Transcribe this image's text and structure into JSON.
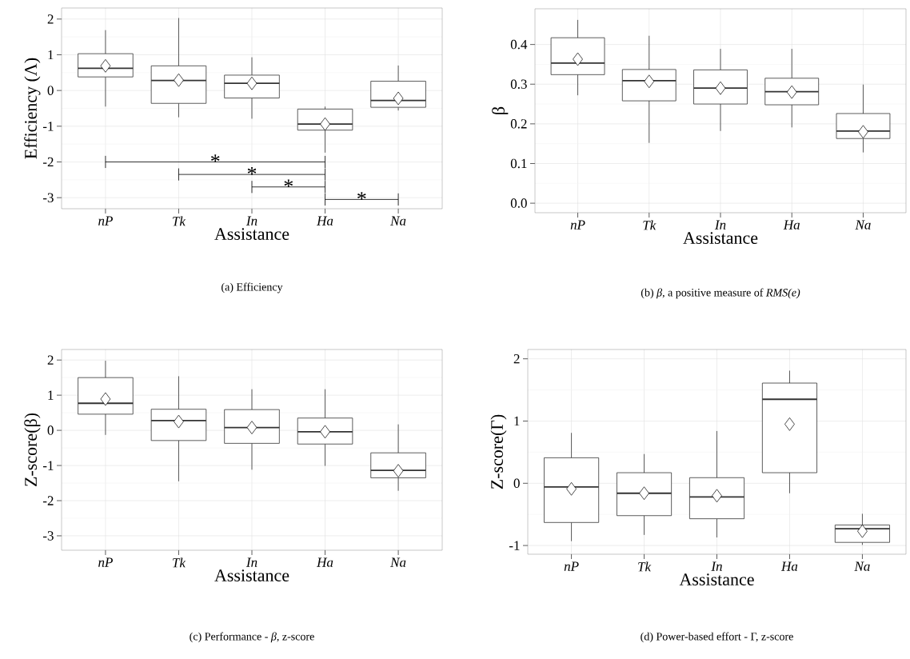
{
  "chart_data": [
    {
      "type": "box",
      "title": "(a) Efficiency",
      "xlabel": "Assistance",
      "ylabel": "Efficiency (Λ)",
      "categories": [
        "nP",
        "Tk",
        "In",
        "Ha",
        "Na"
      ],
      "boxes": [
        {
          "low": -0.45,
          "q1": 0.38,
          "median": 0.62,
          "q3": 1.03,
          "high": 1.69,
          "mean": 0.69
        },
        {
          "low": -0.75,
          "q1": -0.36,
          "median": 0.28,
          "q3": 0.69,
          "high": 2.03,
          "mean": 0.29
        },
        {
          "low": -0.79,
          "q1": -0.21,
          "median": 0.2,
          "q3": 0.43,
          "high": 0.93,
          "mean": 0.2
        },
        {
          "low": -1.74,
          "q1": -1.11,
          "median": -0.94,
          "q3": -0.52,
          "high": -0.45,
          "mean": -0.94
        },
        {
          "low": -0.56,
          "q1": -0.47,
          "median": -0.28,
          "q3": 0.26,
          "high": 0.7,
          "mean": -0.22
        }
      ],
      "ylim": [
        -3.31,
        2.31
      ],
      "yticks": [
        -3,
        -2,
        -1,
        0,
        1,
        2
      ],
      "grid": true,
      "marker": "diamond",
      "annotations": [
        "*",
        "*",
        "*",
        "*"
      ]
    },
    {
      "type": "box",
      "title": "(b) *β*, a positive measure of *RMS(e)*",
      "xlabel": "Assistance",
      "ylabel": "β",
      "categories": [
        "nP",
        "Tk",
        "In",
        "Ha",
        "Na"
      ],
      "boxes": [
        {
          "low": 0.272,
          "q1": 0.324,
          "median": 0.353,
          "q3": 0.417,
          "high": 0.462,
          "mean": 0.363
        },
        {
          "low": 0.152,
          "q1": 0.258,
          "median": 0.309,
          "q3": 0.337,
          "high": 0.422,
          "mean": 0.307
        },
        {
          "low": 0.182,
          "q1": 0.25,
          "median": 0.29,
          "q3": 0.336,
          "high": 0.389,
          "mean": 0.29
        },
        {
          "low": 0.191,
          "q1": 0.248,
          "median": 0.281,
          "q3": 0.315,
          "high": 0.389,
          "mean": 0.28
        },
        {
          "low": 0.128,
          "q1": 0.163,
          "median": 0.182,
          "q3": 0.226,
          "high": 0.299,
          "mean": 0.18
        }
      ],
      "ylim": [
        -0.024,
        0.49
      ],
      "yticks": [
        {
          "value": 0,
          "label": "0.0"
        },
        {
          "value": 0.1,
          "label": "0.1"
        },
        {
          "value": 0.2,
          "label": "0.2"
        },
        {
          "value": 0.3,
          "label": "0.3"
        },
        {
          "value": 0.4,
          "label": "0.4"
        }
      ],
      "grid": true,
      "marker": "diamond"
    },
    {
      "type": "box",
      "title": "(c) Performance - *β*, z-score",
      "xlabel": "Assistance",
      "ylabel": "Z-score(β)",
      "categories": [
        "nP",
        "Tk",
        "In",
        "Ha",
        "Na"
      ],
      "boxes": [
        {
          "low": -0.13,
          "q1": 0.46,
          "median": 0.77,
          "q3": 1.5,
          "high": 1.98,
          "mean": 0.89
        },
        {
          "low": -1.45,
          "q1": -0.29,
          "median": 0.28,
          "q3": 0.6,
          "high": 1.54,
          "mean": 0.25
        },
        {
          "low": -1.12,
          "q1": -0.37,
          "median": 0.08,
          "q3": 0.59,
          "high": 1.17,
          "mean": 0.08
        },
        {
          "low": -1.01,
          "q1": -0.39,
          "median": -0.04,
          "q3": 0.35,
          "high": 1.17,
          "mean": -0.04
        },
        {
          "low": -1.72,
          "q1": -1.35,
          "median": -1.14,
          "q3": -0.64,
          "high": 0.17,
          "mean": -1.15
        }
      ],
      "ylim": [
        -3.41,
        2.3
      ],
      "yticks": [
        -3,
        -2,
        -1,
        0,
        1,
        2
      ],
      "grid": true,
      "marker": "diamond"
    },
    {
      "type": "box",
      "title": "(d) Power-based effort - Γ, z-score",
      "xlabel": "Assistance",
      "ylabel": "Z-score(Γ)",
      "categories": [
        "nP",
        "Tk",
        "In",
        "Ha",
        "Na"
      ],
      "boxes": [
        {
          "low": -0.93,
          "q1": -0.63,
          "median": -0.06,
          "q3": 0.41,
          "high": 0.81,
          "mean": -0.09
        },
        {
          "low": -0.83,
          "q1": -0.52,
          "median": -0.16,
          "q3": 0.17,
          "high": 0.47,
          "mean": -0.16
        },
        {
          "low": -0.87,
          "q1": -0.57,
          "median": -0.22,
          "q3": 0.09,
          "high": 0.84,
          "mean": -0.2
        },
        {
          "low": -0.16,
          "q1": 0.17,
          "median": 1.35,
          "q3": 1.61,
          "high": 1.81,
          "mean": 0.95
        },
        {
          "low": -0.99,
          "q1": -0.95,
          "median": -0.73,
          "q3": -0.67,
          "high": -0.49,
          "mean": -0.77
        }
      ],
      "ylim": [
        -1.14,
        2.15
      ],
      "yticks": [
        -1,
        0,
        1,
        2
      ],
      "grid": true,
      "marker": "diamond"
    }
  ]
}
